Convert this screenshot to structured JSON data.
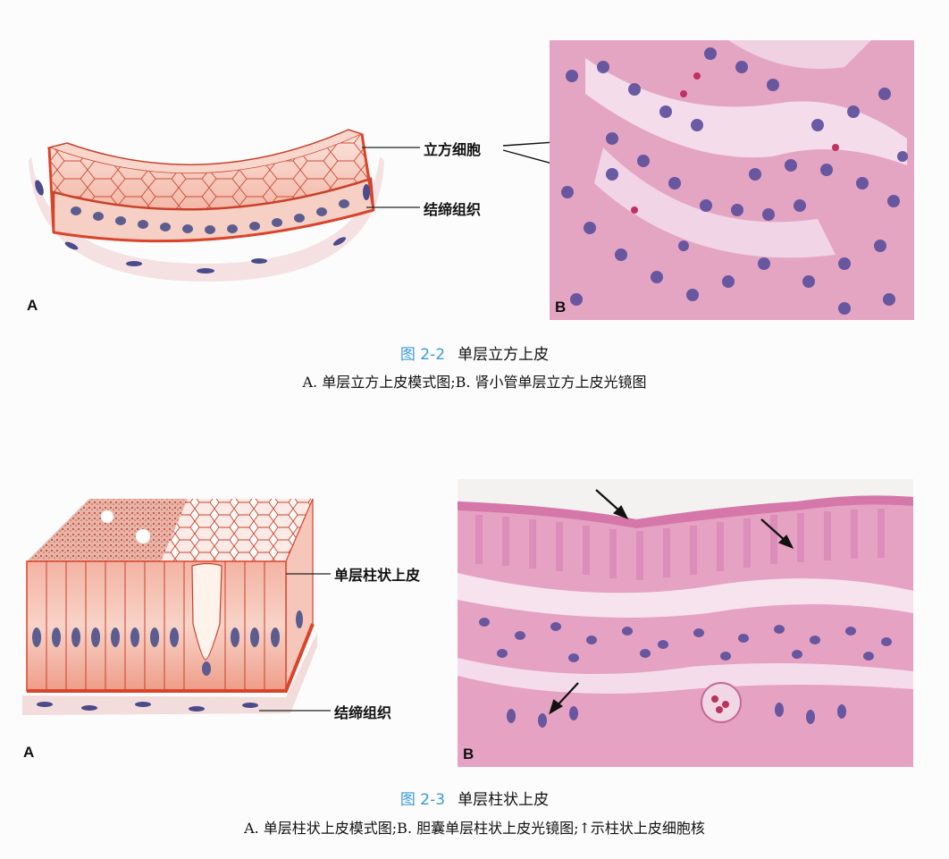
{
  "figures": [
    {
      "number": "图 2-2",
      "title": "单层立方上皮",
      "caption": "A. 单层立方上皮模式图;B. 肾小管单层立方上皮光镜图",
      "panel_a": {
        "letter": "A",
        "labels": [
          "立方细胞",
          "结缔组织"
        ]
      },
      "panel_b": {
        "letter": "B"
      }
    },
    {
      "number": "图 2-3",
      "title": "单层柱状上皮",
      "caption": "A. 单层柱状上皮模式图;B. 胆囊单层柱状上皮光镜图;↑示柱状上皮细胞核",
      "panel_a": {
        "letter": "A",
        "labels": [
          "单层柱状上皮",
          "结缔组织"
        ]
      },
      "panel_b": {
        "letter": "B"
      }
    }
  ],
  "colors": {
    "caption_number": "#3a9ad9",
    "tissue_red": "#d9452b",
    "tissue_pink": "#f6c7bc",
    "histology_bg": "#e8a6c6",
    "nucleus": "#4b4a8a"
  }
}
